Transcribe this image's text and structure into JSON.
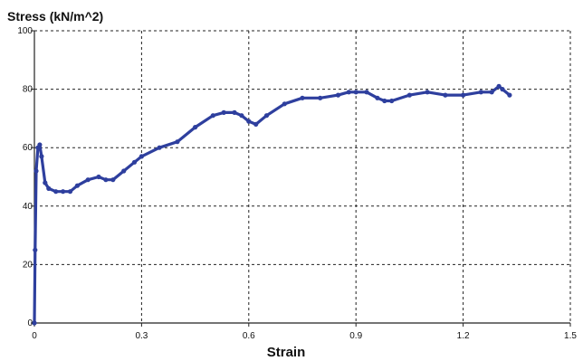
{
  "chart_data": {
    "type": "line",
    "xlabel": "Strain",
    "ylabel": "Stress (kN/m^2)",
    "xlim": [
      0,
      1.5
    ],
    "ylim": [
      0,
      100
    ],
    "x_ticks": [
      "0",
      "0.3",
      "0.6",
      "0.9",
      "1.2",
      "1.5"
    ],
    "y_ticks": [
      "0",
      "20",
      "40",
      "60",
      "80",
      "100"
    ],
    "grid": true,
    "legend": "none",
    "series_color": "#2E3F9E",
    "series": [
      {
        "x": [
          0.0,
          0.002,
          0.005,
          0.01,
          0.015,
          0.02,
          0.03,
          0.04,
          0.06,
          0.08,
          0.1,
          0.12,
          0.15,
          0.18,
          0.2,
          0.22,
          0.25,
          0.28,
          0.3,
          0.35,
          0.4,
          0.45,
          0.5,
          0.53,
          0.56,
          0.58,
          0.6,
          0.62,
          0.65,
          0.7,
          0.75,
          0.8,
          0.85,
          0.88,
          0.9,
          0.93,
          0.96,
          0.98,
          1.0,
          1.05,
          1.1,
          1.15,
          1.2,
          1.25,
          1.28,
          1.3,
          1.31,
          1.33
        ],
        "y": [
          0,
          25,
          52,
          60,
          61,
          57,
          48,
          46,
          45,
          45,
          45,
          47,
          49,
          50,
          49,
          49,
          52,
          55,
          57,
          60,
          62,
          67,
          71,
          72,
          72,
          71,
          69,
          68,
          71,
          75,
          77,
          77,
          78,
          79,
          79,
          79,
          77,
          76,
          76,
          78,
          79,
          78,
          78,
          79,
          79,
          81,
          80,
          78
        ]
      }
    ]
  }
}
